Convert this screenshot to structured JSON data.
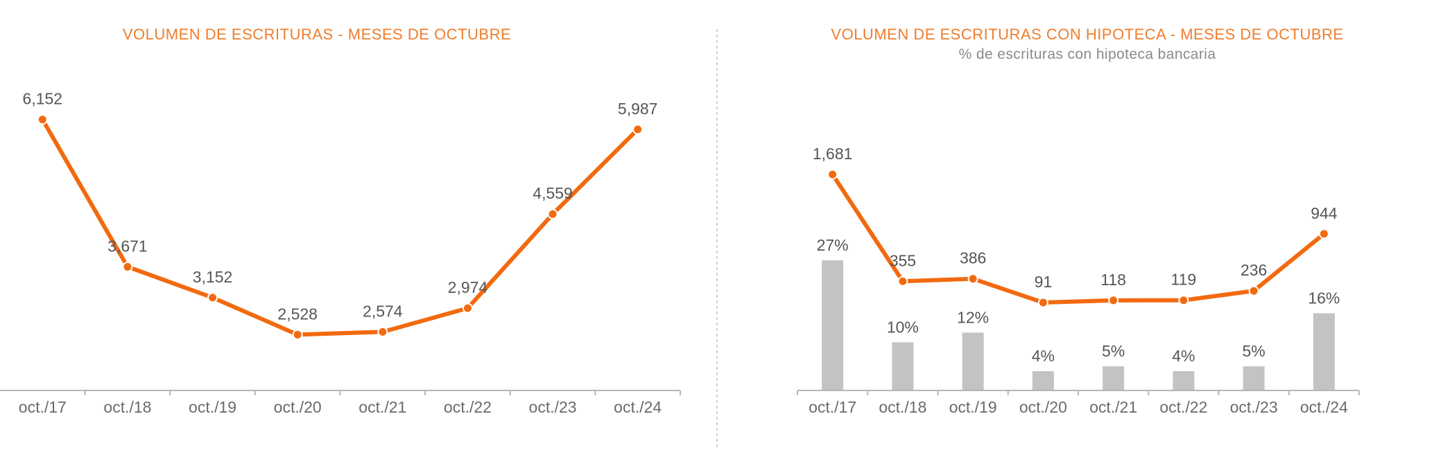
{
  "colors": {
    "title": "#f07c2a",
    "line": "#f26a10",
    "bar": "#c3c3c3",
    "axis": "#b5b5b5",
    "divider": "#cfcfcf",
    "label": "#555555"
  },
  "chart_data": [
    {
      "type": "line",
      "title": "VOLUMEN DE ESCRITURAS - MESES DE OCTUBRE",
      "subtitle": "",
      "categories": [
        "oct./17",
        "oct./18",
        "oct./19",
        "oct./20",
        "oct./21",
        "oct./22",
        "oct./23",
        "oct./24"
      ],
      "series": [
        {
          "values": [
            6152,
            3671,
            3152,
            2528,
            2574,
            2974,
            4559,
            5987
          ],
          "labels": [
            "6,152",
            "3,671",
            "3,152",
            "2,528",
            "2,574",
            "2,974",
            "4,559",
            "5,987"
          ]
        }
      ],
      "ylim": [
        0,
        7000
      ],
      "grid": false,
      "legend": "none"
    },
    {
      "type": "bar",
      "title": "VOLUMEN DE ESCRITURAS CON HIPOTECA - MESES DE OCTUBRE",
      "subtitle": "% de escrituras con hipoteca bancaria",
      "categories": [
        "oct./17",
        "oct./18",
        "oct./19",
        "oct./20",
        "oct./21",
        "oct./22",
        "oct./23",
        "oct./24"
      ],
      "series": [
        {
          "type": "bar",
          "values": [
            27,
            10,
            12,
            4,
            5,
            4,
            5,
            16
          ],
          "labels": [
            "27%",
            "10%",
            "12%",
            "4%",
            "5%",
            "4%",
            "5%",
            "16%"
          ]
        },
        {
          "type": "line",
          "values": [
            1681,
            355,
            386,
            91,
            118,
            119,
            236,
            944
          ],
          "labels": [
            "1,681",
            "355",
            "386",
            "91",
            "118",
            "119",
            "236",
            "944"
          ]
        }
      ],
      "ylim_bar": [
        0,
        45
      ],
      "ylim_line": [
        -1500,
        2200
      ],
      "grid": false,
      "legend": "none"
    }
  ]
}
